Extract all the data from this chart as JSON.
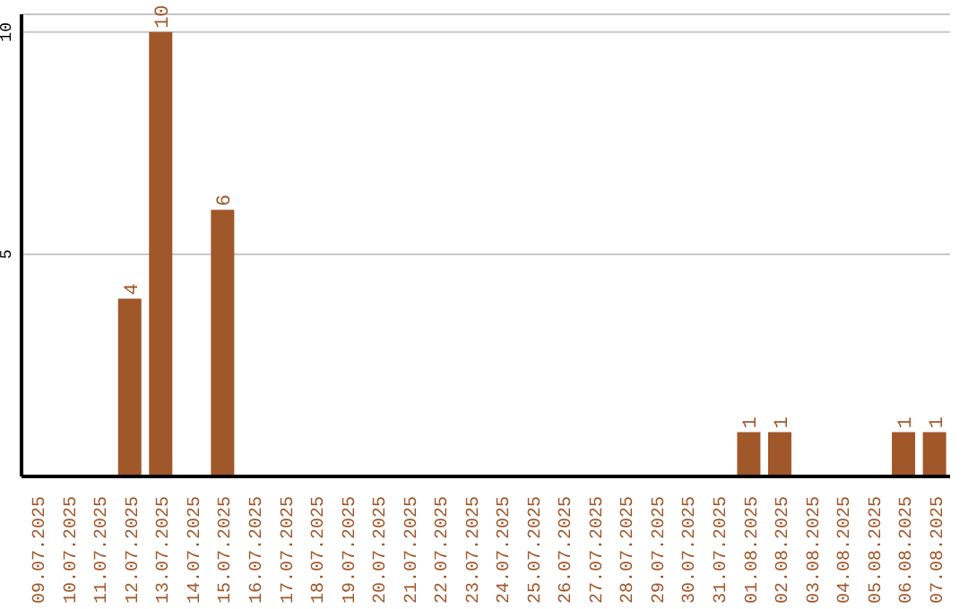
{
  "chart_data": {
    "type": "bar",
    "categories": [
      "09.07.2025",
      "10.07.2025",
      "11.07.2025",
      "12.07.2025",
      "13.07.2025",
      "14.07.2025",
      "15.07.2025",
      "16.07.2025",
      "17.07.2025",
      "18.07.2025",
      "19.07.2025",
      "20.07.2025",
      "21.07.2025",
      "22.07.2025",
      "23.07.2025",
      "24.07.2025",
      "25.07.2025",
      "26.07.2025",
      "27.07.2025",
      "28.07.2025",
      "29.07.2025",
      "30.07.2025",
      "31.07.2025",
      "01.08.2025",
      "02.08.2025",
      "03.08.2025",
      "04.08.2025",
      "05.08.2025",
      "06.08.2025",
      "07.08.2025"
    ],
    "values": [
      0,
      0,
      0,
      4,
      10,
      0,
      6,
      0,
      0,
      0,
      0,
      0,
      0,
      0,
      0,
      0,
      0,
      0,
      0,
      0,
      0,
      0,
      0,
      1,
      1,
      0,
      0,
      0,
      1,
      1
    ],
    "value_labels": [
      null,
      null,
      null,
      "4",
      "10",
      null,
      "6",
      null,
      null,
      null,
      null,
      null,
      null,
      null,
      null,
      null,
      null,
      null,
      null,
      null,
      null,
      null,
      null,
      "1",
      "1",
      null,
      null,
      null,
      "1",
      "1"
    ],
    "color": "#a0572a",
    "ylim": [
      0,
      10.4
    ],
    "yticks": [
      5,
      10
    ],
    "grid": "y"
  }
}
